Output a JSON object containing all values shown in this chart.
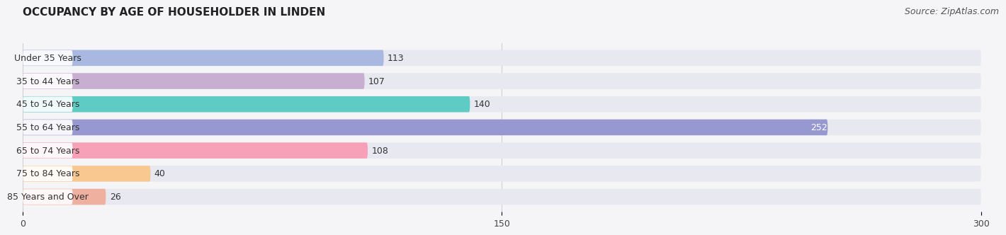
{
  "title": "OCCUPANCY BY AGE OF HOUSEHOLDER IN LINDEN",
  "source": "Source: ZipAtlas.com",
  "categories": [
    "Under 35 Years",
    "35 to 44 Years",
    "45 to 54 Years",
    "55 to 64 Years",
    "65 to 74 Years",
    "75 to 84 Years",
    "85 Years and Over"
  ],
  "values": [
    113,
    107,
    140,
    252,
    108,
    40,
    26
  ],
  "bar_colors": [
    "#a8b8e0",
    "#c8aed0",
    "#5eccc4",
    "#9898d0",
    "#f8a0b8",
    "#f8c890",
    "#f0b0a0"
  ],
  "bar_background": "#e8e8f0",
  "label_bg": "#ffffff",
  "xlim": [
    0,
    300
  ],
  "xticks": [
    0,
    150,
    300
  ],
  "title_fontsize": 11,
  "source_fontsize": 9,
  "value_fontsize": 9,
  "label_fontsize": 9,
  "background_color": "#f5f5f7",
  "label_color_dark": "#333333",
  "label_color_white": "#ffffff",
  "white_value_threshold": 200,
  "grid_color": "#cccccc"
}
